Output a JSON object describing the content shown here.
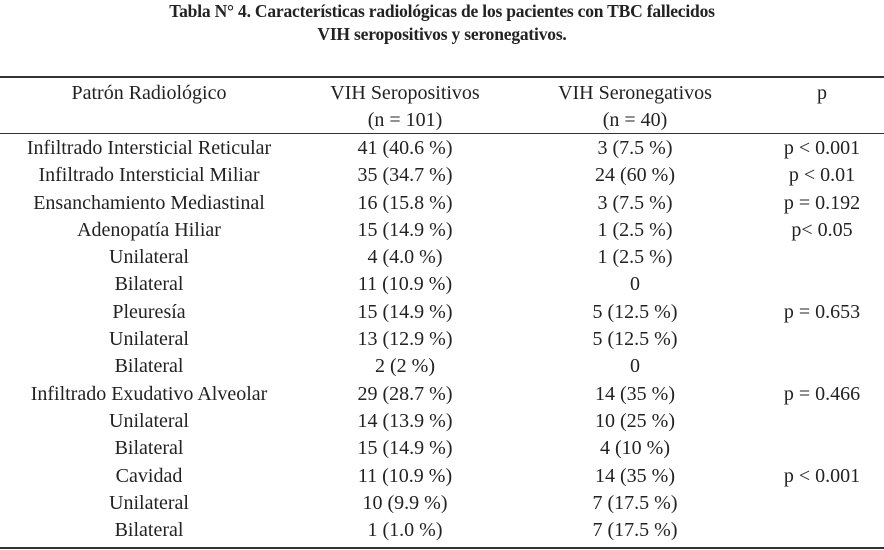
{
  "title": {
    "line1": "Tabla N° 4. Características radiológicas de los pacientes con TBC fallecidos",
    "line2": "VIH seropositivos y seronegativos."
  },
  "headers": {
    "patron": "Patrón Radiológico",
    "seropositivos": "VIH Seropositivos",
    "seropositivos_n": "(n = 101)",
    "seronegativos": "VIH Seronegativos",
    "seronegativos_n": "(n = 40)",
    "p": "p"
  },
  "rows": [
    {
      "patron": "Infiltrado Intersticial Reticular",
      "pos": "41 (40.6 %)",
      "neg": "3 (7.5 %)",
      "p": "p < 0.001"
    },
    {
      "patron": "Infiltrado Intersticial Miliar",
      "pos": "35 (34.7 %)",
      "neg": "24 (60 %)",
      "p": "p < 0.01"
    },
    {
      "patron": "Ensanchamiento Mediastinal",
      "pos": "16 (15.8 %)",
      "neg": "3 (7.5 %)",
      "p": "p = 0.192"
    },
    {
      "patron": "Adenopatía Hiliar",
      "pos": "15 (14.9 %)",
      "neg": "1 (2.5 %)",
      "p": "p< 0.05"
    },
    {
      "patron": "Unilateral",
      "pos": "4 (4.0 %)",
      "neg": "1 (2.5 %)",
      "p": ""
    },
    {
      "patron": "Bilateral",
      "pos": "11 (10.9 %)",
      "neg": "0",
      "p": ""
    },
    {
      "patron": "Pleuresía",
      "pos": "15 (14.9 %)",
      "neg": "5 (12.5 %)",
      "p": "p = 0.653"
    },
    {
      "patron": "Unilateral",
      "pos": "13 (12.9 %)",
      "neg": "5 (12.5 %)",
      "p": ""
    },
    {
      "patron": "Bilateral",
      "pos": "2 (2 %)",
      "neg": "0",
      "p": ""
    },
    {
      "patron": "Infiltrado Exudativo Alveolar",
      "pos": "29 (28.7 %)",
      "neg": "14 (35 %)",
      "p": "p = 0.466"
    },
    {
      "patron": "Unilateral",
      "pos": "14 (13.9 %)",
      "neg": "10 (25 %)",
      "p": ""
    },
    {
      "patron": "Bilateral",
      "pos": "15 (14.9 %)",
      "neg": "4 (10 %)",
      "p": ""
    },
    {
      "patron": "Cavidad",
      "pos": "11 (10.9 %)",
      "neg": "14 (35 %)",
      "p": "p < 0.001"
    },
    {
      "patron": "Unilateral",
      "pos": "10 (9.9 %)",
      "neg": "7 (17.5 %)",
      "p": ""
    },
    {
      "patron": "Bilateral",
      "pos": "1 (1.0 %)",
      "neg": "7 (17.5 %)",
      "p": ""
    }
  ]
}
